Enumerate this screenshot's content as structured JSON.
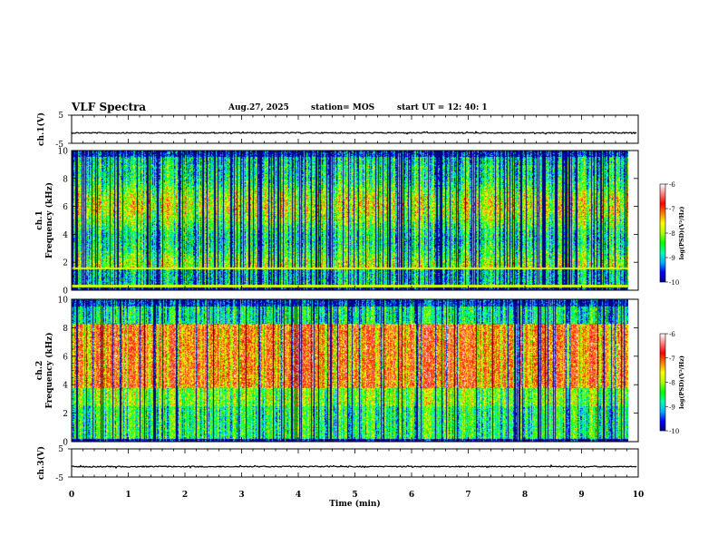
{
  "header": {
    "title": "VLF Spectra",
    "date": "Aug.27, 2025",
    "station": "station= MOS",
    "start": "start  UT =   12: 40: 1"
  },
  "colors": {
    "colormap": [
      "#000080",
      "#0000ff",
      "#00b0ff",
      "#00ffb0",
      "#00ff00",
      "#b0ff00",
      "#ffff00",
      "#ff8000",
      "#ff0000",
      "#ff8080",
      "#ffffff"
    ],
    "axis": "#000000"
  },
  "chart_data": [
    {
      "type": "line",
      "name": "ch1-waveform",
      "ylabel": "ch.1(V)",
      "ylim": [
        -5,
        5
      ],
      "yticks": [
        "5",
        "-5"
      ],
      "xlim": [
        0,
        10
      ],
      "baseline": -1.3,
      "note": "noise signal near constant level"
    },
    {
      "type": "heatmap",
      "name": "ch1-spectrogram",
      "ylabel_top": "ch.1",
      "ylabel": "Frequency (kHz)",
      "ylim": [
        0,
        10
      ],
      "yticks": [
        "0",
        "2",
        "4",
        "6",
        "8",
        "10"
      ],
      "xlim": [
        0,
        10
      ],
      "data_end_min": 9.82,
      "colorbar": {
        "label": "log(PSD)(V²/Hz)",
        "range": [
          -10,
          -6
        ],
        "ticks": [
          "-6",
          "-7",
          "-8",
          "-9",
          "-10"
        ]
      }
    },
    {
      "type": "heatmap",
      "name": "ch2-spectrogram",
      "ylabel_top": "ch.2",
      "ylabel": "Frequency (kHz)",
      "ylim": [
        0,
        10
      ],
      "yticks": [
        "0",
        "2",
        "4",
        "6",
        "8",
        "10"
      ],
      "xlim": [
        0,
        10
      ],
      "data_end_min": 9.82,
      "colorbar": {
        "label": "log(PSD)(V²/Hz)",
        "range": [
          -10,
          -6
        ],
        "ticks": [
          "-6",
          "-7",
          "-8",
          "-9",
          "-10"
        ]
      }
    },
    {
      "type": "line",
      "name": "ch3-waveform",
      "ylabel": "ch.3(V)",
      "ylim": [
        -5,
        5
      ],
      "yticks": [
        "5",
        "-5"
      ],
      "xlim": [
        0,
        10
      ],
      "baseline": -1.3,
      "xlabel": "Time (min)",
      "xticks": [
        "0",
        "1",
        "2",
        "3",
        "4",
        "5",
        "6",
        "7",
        "8",
        "9",
        "10"
      ]
    }
  ]
}
